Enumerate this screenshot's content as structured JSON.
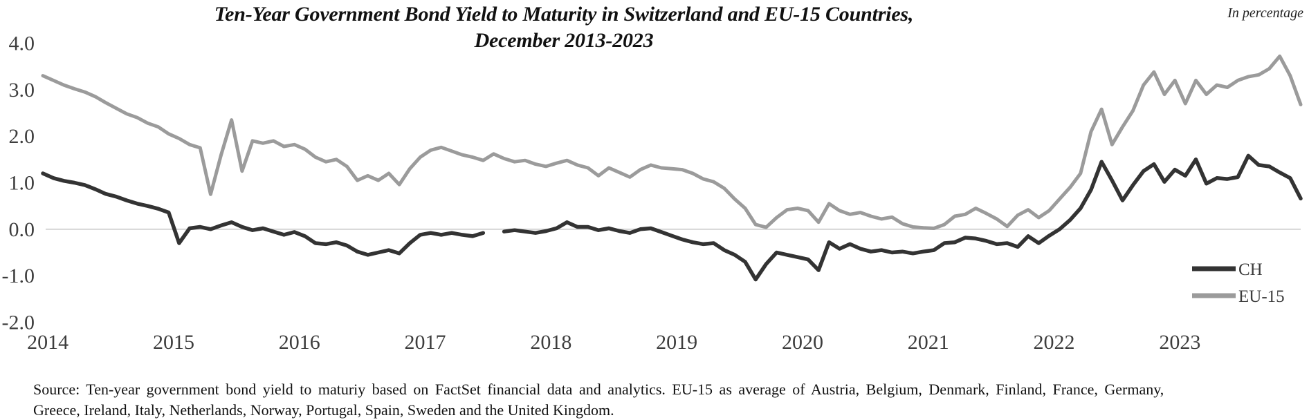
{
  "figure": {
    "title_line1": "Ten-Year Government Bond Yield to Maturity in Switzerland and EU-15 Countries,",
    "title_line2": "December 2013-2023",
    "unit_note": "In percentage",
    "source_line1": "Source: Ten-year government bond yield to maturiy based on FactSet financial data and analytics. EU-15 as average of Austria, Belgium, Denmark, Finland, France, Germany,",
    "source_line2": "Greece, Ireland, Italy, Netherlands, Norway, Portugal, Spain, Sweden and the United Kingdom."
  },
  "colors": {
    "ch_line": "#333333",
    "eu15_line": "#9b9b9b",
    "zero_gridline": "#d6d6d6",
    "axis_text": "#3d3d3d",
    "title_text": "#111111"
  },
  "chart_data": {
    "type": "line",
    "title": "Ten-Year Government Bond Yield to Maturity in Switzerland and EU-15 Countries, December 2013-2023",
    "unit": "percent",
    "x_start": "2013-12",
    "x_end": "2023-12",
    "frequency": "monthly",
    "x_tick_labels": [
      "2014",
      "2015",
      "2016",
      "2017",
      "2018",
      "2019",
      "2020",
      "2021",
      "2022",
      "2023"
    ],
    "y_tick_labels": [
      "4.0",
      "3.0",
      "2.0",
      "1.0",
      "0.0",
      "-1.0",
      "-2.0"
    ],
    "ylim": [
      -2.0,
      4.0
    ],
    "grid": "zero-line-only",
    "legend_position": "inside-right-lower",
    "notes": "CH series has a short data gap around July 2017",
    "series": [
      {
        "name": "CH",
        "color": "#333333",
        "values": [
          1.2,
          1.1,
          1.04,
          1.0,
          0.95,
          0.86,
          0.76,
          0.7,
          0.62,
          0.55,
          0.5,
          0.44,
          0.36,
          -0.3,
          0.02,
          0.05,
          0.0,
          0.08,
          0.15,
          0.05,
          -0.02,
          0.02,
          -0.05,
          -0.12,
          -0.06,
          -0.15,
          -0.3,
          -0.32,
          -0.28,
          -0.35,
          -0.48,
          -0.55,
          -0.5,
          -0.45,
          -0.52,
          -0.3,
          -0.12,
          -0.08,
          -0.12,
          -0.08,
          -0.12,
          -0.15,
          -0.08,
          null,
          -0.05,
          -0.02,
          -0.05,
          -0.08,
          -0.04,
          0.02,
          0.15,
          0.05,
          0.05,
          -0.02,
          0.02,
          -0.04,
          -0.08,
          0.0,
          0.02,
          -0.06,
          -0.14,
          -0.22,
          -0.28,
          -0.32,
          -0.3,
          -0.45,
          -0.55,
          -0.7,
          -1.08,
          -0.75,
          -0.5,
          -0.55,
          -0.6,
          -0.65,
          -0.88,
          -0.28,
          -0.42,
          -0.32,
          -0.42,
          -0.48,
          -0.45,
          -0.5,
          -0.48,
          -0.52,
          -0.48,
          -0.45,
          -0.3,
          -0.28,
          -0.18,
          -0.2,
          -0.25,
          -0.32,
          -0.3,
          -0.38,
          -0.15,
          -0.3,
          -0.14,
          0.0,
          0.2,
          0.45,
          0.85,
          1.45,
          1.05,
          0.62,
          0.95,
          1.25,
          1.4,
          1.02,
          1.28,
          1.15,
          1.5,
          0.98,
          1.1,
          1.08,
          1.12,
          1.58,
          1.38,
          1.35,
          1.22,
          1.1,
          0.66
        ]
      },
      {
        "name": "EU-15",
        "color": "#9b9b9b",
        "values": [
          3.3,
          3.2,
          3.1,
          3.02,
          2.95,
          2.85,
          2.72,
          2.6,
          2.48,
          2.4,
          2.28,
          2.2,
          2.05,
          1.95,
          1.82,
          1.75,
          0.75,
          1.6,
          2.35,
          1.25,
          1.9,
          1.85,
          1.9,
          1.78,
          1.82,
          1.72,
          1.55,
          1.45,
          1.5,
          1.35,
          1.05,
          1.15,
          1.05,
          1.2,
          0.96,
          1.3,
          1.55,
          1.7,
          1.76,
          1.68,
          1.6,
          1.55,
          1.48,
          1.62,
          1.52,
          1.45,
          1.48,
          1.4,
          1.35,
          1.42,
          1.48,
          1.38,
          1.32,
          1.15,
          1.32,
          1.22,
          1.12,
          1.28,
          1.38,
          1.32,
          1.3,
          1.28,
          1.2,
          1.08,
          1.02,
          0.88,
          0.65,
          0.45,
          0.1,
          0.04,
          0.25,
          0.42,
          0.45,
          0.4,
          0.15,
          0.55,
          0.4,
          0.32,
          0.36,
          0.28,
          0.22,
          0.26,
          0.12,
          0.05,
          0.03,
          0.02,
          0.1,
          0.28,
          0.32,
          0.45,
          0.34,
          0.22,
          0.06,
          0.3,
          0.42,
          0.25,
          0.4,
          0.65,
          0.9,
          1.2,
          2.1,
          2.58,
          1.82,
          2.2,
          2.55,
          3.1,
          3.38,
          2.9,
          3.2,
          2.7,
          3.2,
          2.9,
          3.1,
          3.05,
          3.2,
          3.28,
          3.32,
          3.45,
          3.72,
          3.3,
          2.68
        ]
      }
    ]
  }
}
